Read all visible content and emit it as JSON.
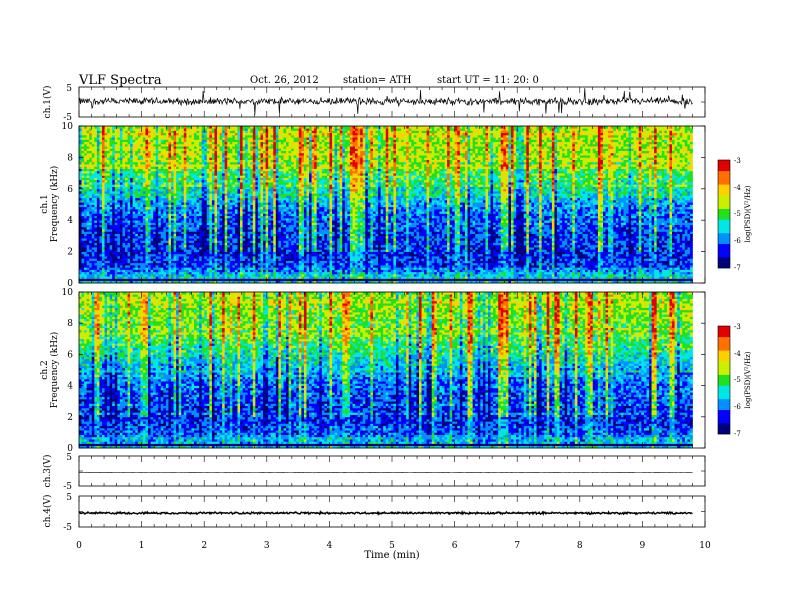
{
  "header": {
    "title": "VLF  Spectra",
    "date": "Oct. 26, 2012",
    "station": "station= ATH",
    "start": "start  UT  =    11: 20: 0"
  },
  "x_axis": {
    "label": "Time  (min)",
    "ticks": [
      "0",
      "1",
      "2",
      "3",
      "4",
      "5",
      "6",
      "7",
      "8",
      "9",
      "10"
    ]
  },
  "panels": {
    "ch1_wave": {
      "label": "ch.1(V)",
      "tick_top": "5",
      "tick_bottom": "-5"
    },
    "ch1_spec": {
      "label_a": "ch.1",
      "label_b": "Frequency  (kHz)",
      "ticks": [
        "0",
        "2",
        "4",
        "6",
        "8",
        "10"
      ]
    },
    "ch2_spec": {
      "label_a": "ch.2",
      "label_b": "Frequency  (kHz)",
      "ticks": [
        "0",
        "2",
        "4",
        "6",
        "8",
        "10"
      ]
    },
    "ch3_wave": {
      "label": "ch.3(V)",
      "tick_top": "5",
      "tick_bottom": "-5"
    },
    "ch4_wave": {
      "label": "ch.4(V)",
      "tick_top": "5",
      "tick_bottom": "-5"
    }
  },
  "colorbar": {
    "label": "log(PSD)(V²/Hz)",
    "ticks": [
      "-3",
      "-4",
      "-5",
      "-6",
      "-7"
    ],
    "colors": [
      "#00007a",
      "#0000ff",
      "#0090ff",
      "#00e6e6",
      "#20e020",
      "#c8f000",
      "#ffd000",
      "#ff7000",
      "#e00000",
      "#ffffff"
    ]
  },
  "chart_data": [
    {
      "type": "line",
      "title": "VLF  Spectra",
      "panel": "ch.1 waveform",
      "xlabel": "Time  (min)",
      "ylabel": "ch.1(V)",
      "xlim": [
        0,
        10
      ],
      "ylim": [
        -5,
        5
      ],
      "data_end_min": 9.8,
      "baseline_V": 0.2,
      "noise_amplitude_V": 1.5,
      "spike_amplitude_V": 4.5
    },
    {
      "type": "heatmap",
      "panel": "ch.1 spectrogram",
      "xlabel": "Time  (min)",
      "ylabel": "Frequency  (kHz)",
      "xlim": [
        0,
        10
      ],
      "ylim": [
        0,
        10
      ],
      "data_end_min": 9.8,
      "color_label": "log(PSD)(V²/Hz)",
      "color_range": [
        -7,
        -3
      ],
      "mean_psd_profile": {
        "freq_kHz": [
          0,
          0.5,
          1,
          2,
          3,
          4,
          5,
          6,
          7,
          8,
          9,
          10
        ],
        "log_psd": [
          -5.5,
          -5.6,
          -6.2,
          -6.3,
          -6.2,
          -6.1,
          -5.8,
          -5.3,
          -5.0,
          -4.7,
          -4.6,
          -4.6
        ]
      },
      "persistent_line_kHz": 0.25
    },
    {
      "type": "heatmap",
      "panel": "ch.2 spectrogram",
      "xlabel": "Time  (min)",
      "ylabel": "Frequency  (kHz)",
      "xlim": [
        0,
        10
      ],
      "ylim": [
        0,
        10
      ],
      "data_end_min": 9.8,
      "color_label": "log(PSD)(V²/Hz)",
      "color_range": [
        -7,
        -3
      ],
      "mean_psd_profile": {
        "freq_kHz": [
          0,
          0.5,
          1,
          2,
          3,
          4,
          5,
          6,
          7,
          8,
          9,
          10
        ],
        "log_psd": [
          -5.6,
          -5.7,
          -6.1,
          -6.3,
          -6.2,
          -6.0,
          -5.8,
          -5.3,
          -5.0,
          -4.8,
          -4.7,
          -4.7
        ]
      },
      "persistent_line_kHz": 0.2
    },
    {
      "type": "line",
      "panel": "ch.3 waveform",
      "xlabel": "Time  (min)",
      "ylabel": "ch.3(V)",
      "xlim": [
        0,
        10
      ],
      "ylim": [
        -5,
        5
      ],
      "data_end_min": 9.8,
      "baseline_V": -0.5,
      "noise_amplitude_V": 0.1
    },
    {
      "type": "line",
      "panel": "ch.4 waveform",
      "xlabel": "Time  (min)",
      "ylabel": "ch.4(V)",
      "xlim": [
        0,
        10
      ],
      "ylim": [
        -5,
        5
      ],
      "data_end_min": 9.8,
      "baseline_V": -0.5,
      "noise_amplitude_V": 0.4
    }
  ]
}
